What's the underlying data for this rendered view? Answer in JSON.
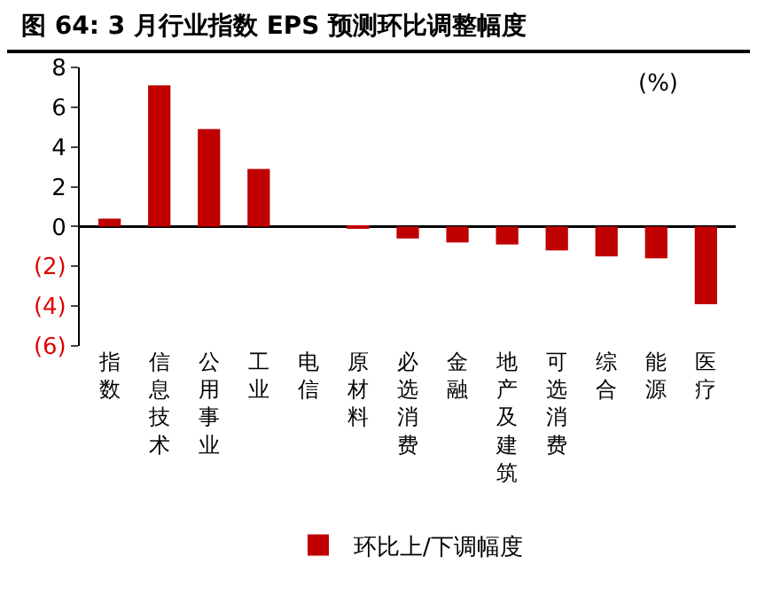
{
  "chart_data": {
    "type": "bar",
    "title": "图 64: 3 月行业指数 EPS 预测环比调整幅度",
    "ylabel": "(%)",
    "categories": [
      "指数",
      "信息技术",
      "公用事业",
      "工业",
      "电信",
      "原材料",
      "必选消费",
      "金融",
      "地产及建筑",
      "可选消费",
      "综合",
      "能源",
      "医疗"
    ],
    "series": [
      {
        "name": "环比上/下调幅度",
        "color": "#c00000",
        "values": [
          0.4,
          7.1,
          4.9,
          2.9,
          0,
          -0.1,
          -0.6,
          -0.8,
          -0.9,
          -1.2,
          -1.5,
          -1.6,
          -3.9
        ]
      }
    ],
    "ylim": [
      -6,
      8
    ],
    "yticks": [
      {
        "value": -6,
        "label": "(6)"
      },
      {
        "value": -4,
        "label": "(4)"
      },
      {
        "value": -2,
        "label": "(2)"
      },
      0,
      2,
      4,
      6,
      8
    ],
    "ref_lines": [
      {
        "axis": "y",
        "value": 0,
        "color": "#000000",
        "line_style": "solid"
      }
    ],
    "grid": false,
    "legend": "bottom"
  }
}
